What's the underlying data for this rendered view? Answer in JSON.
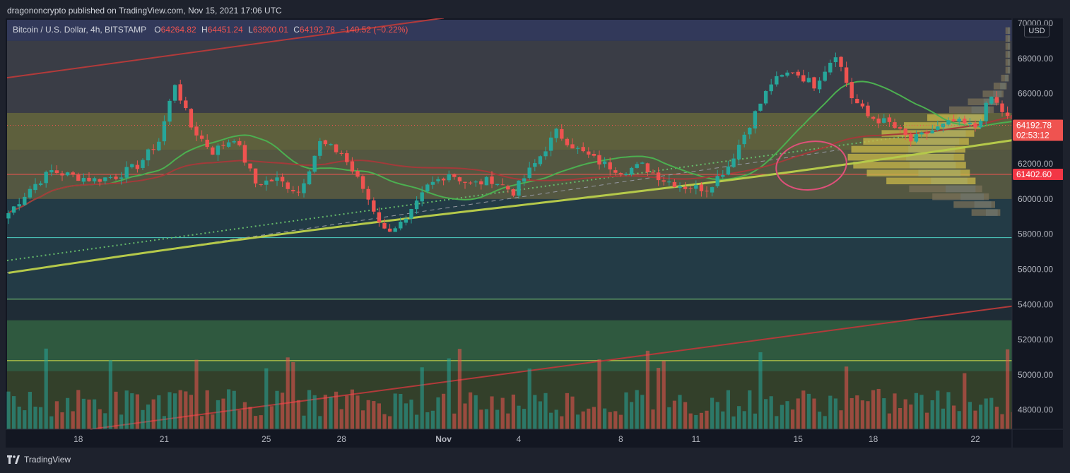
{
  "header": {
    "publish_line": "dragononcrypto published on TradingView.com, Nov 15, 2021 17:06 UTC"
  },
  "legend": {
    "symbol": "Bitcoin / U.S. Dollar, 4h, BITSTAMP",
    "o_label": "O",
    "o_value": "64264.82",
    "h_label": "H",
    "h_value": "64451.24",
    "l_label": "L",
    "l_value": "63900.01",
    "c_label": "C",
    "c_value": "64192.78",
    "change": "−140.52 (−0.22%)"
  },
  "currency_badge": "USD",
  "footer": {
    "brand": "TradingView"
  },
  "colors": {
    "up": "#26a69a",
    "down": "#ef5350",
    "background": "#131722",
    "ma_fast": "#4caf50",
    "ma_mid": "#a33a3a",
    "ma_slow": "#b5c94a"
  },
  "chart_data": {
    "type": "candlestick",
    "timeframe": "4h",
    "x_tick_labels": [
      "18",
      "21",
      "25",
      "28",
      "Nov",
      "4",
      "8",
      "11",
      "15",
      "18",
      "22"
    ],
    "y_tick_labels": [
      "70000.00",
      "68000.00",
      "66000.00",
      "64000.00",
      "62000.00",
      "60000.00",
      "58000.00",
      "56000.00",
      "54000.00",
      "52000.00",
      "50000.00",
      "48000.00"
    ],
    "y_ticks": [
      70000,
      68000,
      66000,
      64000,
      62000,
      60000,
      58000,
      56000,
      54000,
      52000,
      50000,
      48000
    ],
    "ylim": [
      46900,
      70200
    ],
    "price_labels": [
      {
        "value": 64192.78,
        "text": "64192.78",
        "sub": "02:53:12",
        "color": "#ef5350"
      },
      {
        "value": 61402.6,
        "text": "61402.60",
        "color": "#f23645"
      }
    ],
    "horizontal_levels": [
      61402.6,
      57800,
      54300,
      50800
    ],
    "zones": [
      {
        "from": 62800,
        "to": 64900,
        "color": "#d4c34a"
      },
      {
        "from": 60000,
        "to": 62800,
        "color": "#b8aa55"
      },
      {
        "from": 54300,
        "to": 60000,
        "color": "#2a5a63"
      },
      {
        "from": 50200,
        "to": 53100,
        "color": "#4caf50"
      }
    ],
    "path_anchors": [
      [
        0,
        59200
      ],
      [
        4,
        60600
      ],
      [
        8,
        61600
      ],
      [
        12,
        61300
      ],
      [
        16,
        61100
      ],
      [
        20,
        61300
      ],
      [
        24,
        61900
      ],
      [
        28,
        63300
      ],
      [
        31,
        66600
      ],
      [
        34,
        64100
      ],
      [
        38,
        62700
      ],
      [
        42,
        63500
      ],
      [
        46,
        60900
      ],
      [
        50,
        61100
      ],
      [
        54,
        60400
      ],
      [
        58,
        63200
      ],
      [
        62,
        62600
      ],
      [
        66,
        60600
      ],
      [
        70,
        58200
      ],
      [
        74,
        58700
      ],
      [
        78,
        60700
      ],
      [
        82,
        61500
      ],
      [
        86,
        60800
      ],
      [
        90,
        61100
      ],
      [
        94,
        60400
      ],
      [
        98,
        62000
      ],
      [
        102,
        63800
      ],
      [
        106,
        62800
      ],
      [
        110,
        62100
      ],
      [
        114,
        61600
      ],
      [
        118,
        61900
      ],
      [
        122,
        61100
      ],
      [
        126,
        60700
      ],
      [
        130,
        60600
      ],
      [
        134,
        61900
      ],
      [
        138,
        64300
      ],
      [
        142,
        66600
      ],
      [
        146,
        67300
      ],
      [
        150,
        66500
      ],
      [
        154,
        68300
      ],
      [
        157,
        65800
      ],
      [
        160,
        64700
      ],
      [
        164,
        64300
      ],
      [
        168,
        63300
      ],
      [
        172,
        63900
      ],
      [
        176,
        64400
      ],
      [
        180,
        64100
      ],
      [
        183,
        65800
      ],
      [
        186,
        64600
      ],
      [
        188,
        64190
      ]
    ]
  }
}
